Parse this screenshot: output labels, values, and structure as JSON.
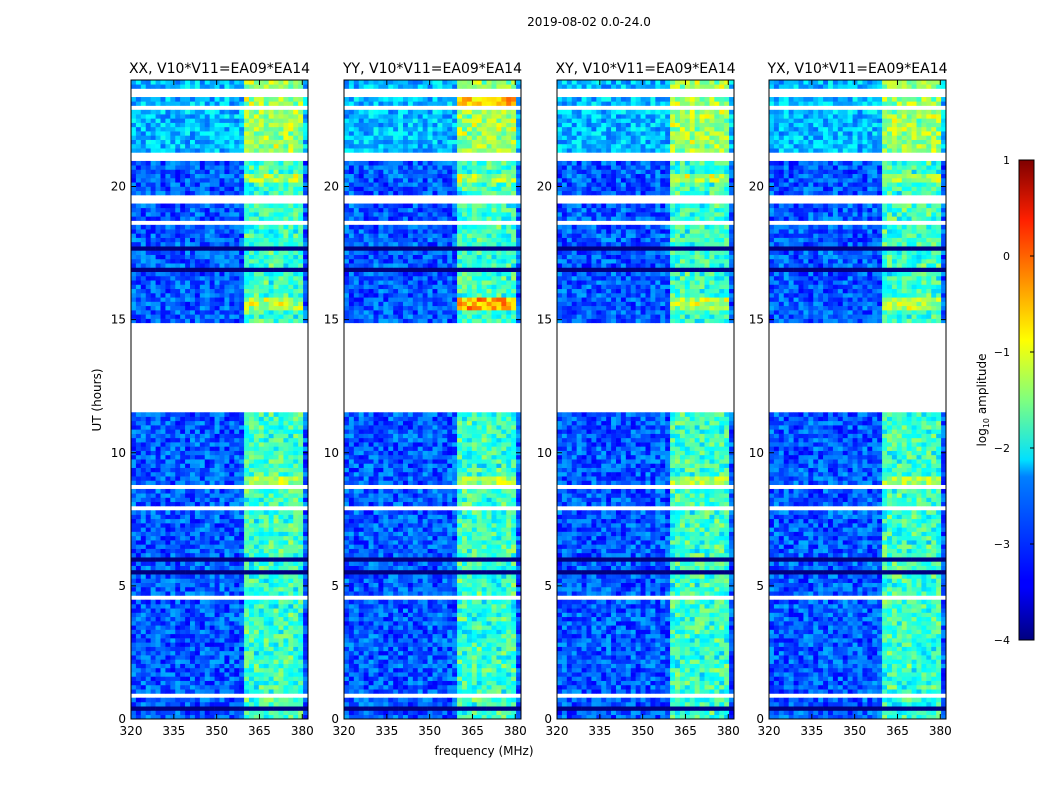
{
  "figure": {
    "suptitle": "2019-08-02 0.0-24.0",
    "ylabel": "UT (hours)",
    "xlabel": "frequency (MHz)",
    "colorbar_label": "log",
    "colorbar_sub": "10",
    "colorbar_label_tail": " amplitude"
  },
  "chart_data": {
    "type": "heatmap",
    "title": "2019-08-02 0.0-24.0",
    "xlabel": "frequency (MHz)",
    "ylabel": "UT (hours)",
    "xlim": [
      320,
      382
    ],
    "ylim": [
      0,
      24
    ],
    "xticks": [
      320,
      335,
      350,
      365,
      380
    ],
    "yticks": [
      0,
      5,
      10,
      15,
      20
    ],
    "colorbar": {
      "label": "log10 amplitude",
      "range": [
        -4,
        1
      ],
      "ticks": [
        -4,
        -3,
        -2,
        -1,
        0,
        1
      ],
      "colormap": "jet"
    },
    "panels": [
      {
        "title": "XX, V10*V11=EA09*EA14",
        "pol": "XX"
      },
      {
        "title": "YY, V10*V11=EA09*EA14",
        "pol": "YY"
      },
      {
        "title": "XY, V10*V11=EA09*EA14",
        "pol": "XY"
      },
      {
        "title": "YX, V10*V11=EA09*EA14",
        "pol": "YX"
      }
    ],
    "data_gap_hours": [
      11.7,
      14.9
    ],
    "strong_rfi_band_mhz": [
      360,
      380
    ]
  }
}
